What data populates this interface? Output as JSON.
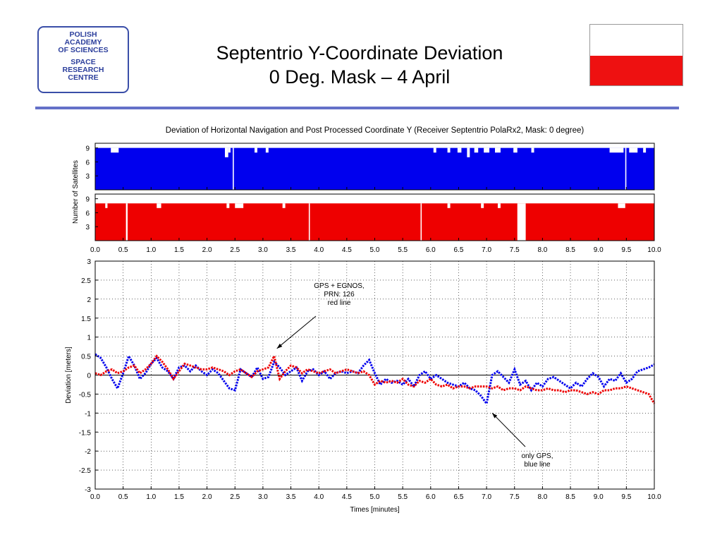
{
  "logo": {
    "line1": "POLISH",
    "line2": "ACADEMY",
    "line3": "OF SCIENCES",
    "line4": "SPACE",
    "line5": "RESEARCH",
    "line6": "CENTRE",
    "color": "#2c3f9c"
  },
  "slide": {
    "title_line1": "Septentrio Y-Coordinate Deviation",
    "title_line2": "0 Deg. Mask – 4 April"
  },
  "flag": {
    "top_color": "#ffffff",
    "bottom_color": "#ee1111"
  },
  "chart_data": [
    {
      "type": "area",
      "title": "Deviation of Horizontal Navigation and Post Processed Coordinate Y (Receiver Septentrio PolaRx2, Mask: 0 degree)",
      "ylabel": "Number of Satellites",
      "color": "#0000ee",
      "xlim": [
        0,
        10
      ],
      "ylim": [
        0,
        10
      ],
      "yticks": [
        "3",
        "6",
        "9"
      ],
      "baseline": 9,
      "dips": [
        [
          0.28,
          0.42,
          8
        ],
        [
          2.32,
          2.38,
          7
        ],
        [
          2.38,
          2.42,
          8
        ],
        [
          2.46,
          2.48,
          0
        ],
        [
          2.85,
          2.9,
          8
        ],
        [
          3.05,
          3.1,
          8
        ],
        [
          6.05,
          6.1,
          8
        ],
        [
          6.3,
          6.35,
          8
        ],
        [
          6.48,
          6.55,
          8
        ],
        [
          6.65,
          6.7,
          7
        ],
        [
          6.78,
          6.85,
          8
        ],
        [
          6.95,
          7.05,
          8
        ],
        [
          7.15,
          7.25,
          8
        ],
        [
          7.48,
          7.55,
          8
        ],
        [
          7.8,
          7.85,
          8
        ],
        [
          9.2,
          9.45,
          8
        ],
        [
          9.48,
          9.5,
          0
        ],
        [
          9.55,
          9.7,
          8
        ],
        [
          9.8,
          9.85,
          8
        ]
      ]
    },
    {
      "type": "area",
      "color": "#ee0000",
      "xlim": [
        0,
        10
      ],
      "ylim": [
        0,
        10
      ],
      "yticks": [
        "3",
        "6",
        "9"
      ],
      "xticks": [
        "0.0",
        "0.5",
        "1.0",
        "1.5",
        "2.0",
        "2.5",
        "3.0",
        "3.5",
        "4.0",
        "4.5",
        "5.0",
        "5.5",
        "6.0",
        "6.5",
        "7.0",
        "7.5",
        "8.0",
        "8.5",
        "9.0",
        "9.5",
        "10.0"
      ],
      "baseline": 8,
      "dips": [
        [
          0.18,
          0.22,
          7
        ],
        [
          0.55,
          0.58,
          0
        ],
        [
          1.1,
          1.18,
          7
        ],
        [
          2.35,
          2.4,
          7
        ],
        [
          2.5,
          2.65,
          7
        ],
        [
          3.35,
          3.4,
          7
        ],
        [
          3.82,
          3.84,
          0
        ],
        [
          5.82,
          5.84,
          0
        ],
        [
          6.3,
          6.35,
          7
        ],
        [
          6.9,
          6.95,
          7
        ],
        [
          7.2,
          7.25,
          7
        ],
        [
          7.55,
          7.7,
          0
        ],
        [
          9.35,
          9.48,
          7
        ]
      ]
    },
    {
      "type": "scatter",
      "xlabel": "Times [minutes]",
      "ylabel": "Deviation [meters]",
      "xlim": [
        0,
        10
      ],
      "ylim": [
        -3,
        3
      ],
      "xticks": [
        "0.0",
        "0.5",
        "1.0",
        "1.5",
        "2.0",
        "2.5",
        "3.0",
        "3.5",
        "4.0",
        "4.5",
        "5.0",
        "5.5",
        "6.0",
        "6.5",
        "7.0",
        "7.5",
        "8.0",
        "8.5",
        "9.0",
        "9.5",
        "10.0"
      ],
      "yticks": [
        "3",
        "2.5",
        "2",
        "1.5",
        "1",
        "0.5",
        "0",
        "-0.5",
        "-1",
        "-1.5",
        "-2",
        "-2.5",
        "-3"
      ],
      "grid": true,
      "series": [
        {
          "color": "#0000ee",
          "x": [
            0,
            0.1,
            0.2,
            0.3,
            0.4,
            0.5,
            0.6,
            0.7,
            0.8,
            0.9,
            1.0,
            1.1,
            1.2,
            1.3,
            1.4,
            1.5,
            1.6,
            1.7,
            1.8,
            1.9,
            2.0,
            2.1,
            2.2,
            2.3,
            2.4,
            2.5,
            2.6,
            2.7,
            2.8,
            2.9,
            3.0,
            3.1,
            3.2,
            3.3,
            3.4,
            3.5,
            3.6,
            3.7,
            3.8,
            3.9,
            4.0,
            4.1,
            4.2,
            4.3,
            4.4,
            4.5,
            4.6,
            4.7,
            4.8,
            4.9,
            5.0,
            5.1,
            5.2,
            5.3,
            5.4,
            5.5,
            5.6,
            5.7,
            5.8,
            5.9,
            6.0,
            6.1,
            6.2,
            6.3,
            6.4,
            6.5,
            6.6,
            6.7,
            6.8,
            6.9,
            7.0,
            7.1,
            7.2,
            7.3,
            7.4,
            7.5,
            7.6,
            7.7,
            7.8,
            7.9,
            8.0,
            8.1,
            8.2,
            8.3,
            8.4,
            8.5,
            8.6,
            8.7,
            8.8,
            8.9,
            9.0,
            9.1,
            9.2,
            9.3,
            9.4,
            9.5,
            9.6,
            9.7,
            9.8,
            9.9,
            10.0
          ],
          "y": [
            0.55,
            0.45,
            0.2,
            -0.1,
            -0.35,
            0.05,
            0.5,
            0.25,
            -0.1,
            0.05,
            0.3,
            0.45,
            0.2,
            0.1,
            -0.1,
            0.2,
            0.25,
            0.1,
            0.25,
            0.1,
            0.0,
            0.15,
            0.05,
            -0.15,
            -0.35,
            -0.4,
            0.15,
            0.05,
            -0.05,
            0.2,
            -0.1,
            -0.05,
            0.35,
            0.2,
            0.0,
            0.1,
            0.2,
            -0.15,
            0.1,
            0.15,
            0.0,
            0.1,
            -0.1,
            0.05,
            0.1,
            0.05,
            0.1,
            0.05,
            0.25,
            0.4,
            0.05,
            -0.25,
            -0.1,
            -0.2,
            -0.15,
            -0.25,
            -0.1,
            -0.3,
            0.0,
            0.1,
            -0.1,
            0.0,
            -0.1,
            -0.2,
            -0.25,
            -0.3,
            -0.2,
            -0.35,
            -0.4,
            -0.55,
            -0.75,
            0.0,
            0.1,
            -0.05,
            -0.2,
            0.15,
            -0.25,
            -0.15,
            -0.4,
            -0.2,
            -0.3,
            -0.1,
            -0.05,
            -0.15,
            -0.25,
            -0.35,
            -0.2,
            -0.3,
            -0.1,
            0.05,
            -0.05,
            -0.3,
            -0.1,
            -0.15,
            0.05,
            -0.2,
            -0.1,
            0.1,
            0.15,
            0.2,
            0.28
          ]
        },
        {
          "color": "#ee0000",
          "x": [
            0,
            0.1,
            0.2,
            0.3,
            0.4,
            0.5,
            0.6,
            0.7,
            0.8,
            0.9,
            1.0,
            1.1,
            1.2,
            1.3,
            1.4,
            1.5,
            1.6,
            1.7,
            1.8,
            1.9,
            2.0,
            2.1,
            2.2,
            2.3,
            2.4,
            2.5,
            2.6,
            2.7,
            2.8,
            2.9,
            3.0,
            3.1,
            3.2,
            3.3,
            3.4,
            3.5,
            3.6,
            3.7,
            3.8,
            3.9,
            4.0,
            4.1,
            4.2,
            4.3,
            4.4,
            4.5,
            4.6,
            4.7,
            4.8,
            4.9,
            5.0,
            5.1,
            5.2,
            5.3,
            5.4,
            5.5,
            5.6,
            5.7,
            5.8,
            5.9,
            6.0,
            6.1,
            6.2,
            6.3,
            6.4,
            6.5,
            6.6,
            6.7,
            6.8,
            6.9,
            7.0,
            7.1,
            7.2,
            7.3,
            7.4,
            7.5,
            7.6,
            7.7,
            7.8,
            7.9,
            8.0,
            8.1,
            8.2,
            8.3,
            8.4,
            8.5,
            8.6,
            8.7,
            8.8,
            8.9,
            9.0,
            9.1,
            9.2,
            9.3,
            9.4,
            9.5,
            9.6,
            9.7,
            9.8,
            9.9,
            10.0
          ],
          "y": [
            0.05,
            0.0,
            0.1,
            0.15,
            0.05,
            0.1,
            0.2,
            0.25,
            0.05,
            0.15,
            0.3,
            0.5,
            0.35,
            0.15,
            -0.1,
            0.1,
            0.3,
            0.25,
            0.2,
            0.15,
            0.15,
            0.2,
            0.15,
            0.1,
            0.0,
            0.1,
            0.15,
            0.05,
            -0.05,
            0.1,
            0.15,
            0.2,
            0.5,
            -0.1,
            0.1,
            0.25,
            0.2,
            0.05,
            0.15,
            0.1,
            0.05,
            0.1,
            0.15,
            0.05,
            0.1,
            0.15,
            0.1,
            0.05,
            0.1,
            0.0,
            -0.25,
            -0.15,
            -0.2,
            -0.15,
            -0.2,
            -0.1,
            -0.25,
            -0.3,
            -0.15,
            -0.2,
            -0.1,
            -0.25,
            -0.3,
            -0.25,
            -0.35,
            -0.3,
            -0.3,
            -0.35,
            -0.3,
            -0.3,
            -0.3,
            -0.35,
            -0.3,
            -0.4,
            -0.35,
            -0.35,
            -0.4,
            -0.3,
            -0.35,
            -0.4,
            -0.4,
            -0.35,
            -0.4,
            -0.4,
            -0.45,
            -0.4,
            -0.4,
            -0.45,
            -0.5,
            -0.45,
            -0.5,
            -0.4,
            -0.4,
            -0.35,
            -0.35,
            -0.3,
            -0.35,
            -0.4,
            -0.45,
            -0.5,
            -0.75
          ]
        }
      ],
      "annotations": [
        {
          "lines": [
            "GPS + EGNOS,",
            "PRN: 126",
            "red line"
          ],
          "point": [
            3.25,
            0.7
          ]
        },
        {
          "lines": [
            "only GPS,",
            "blue line"
          ],
          "point": [
            7.1,
            -1.0
          ]
        }
      ]
    }
  ]
}
